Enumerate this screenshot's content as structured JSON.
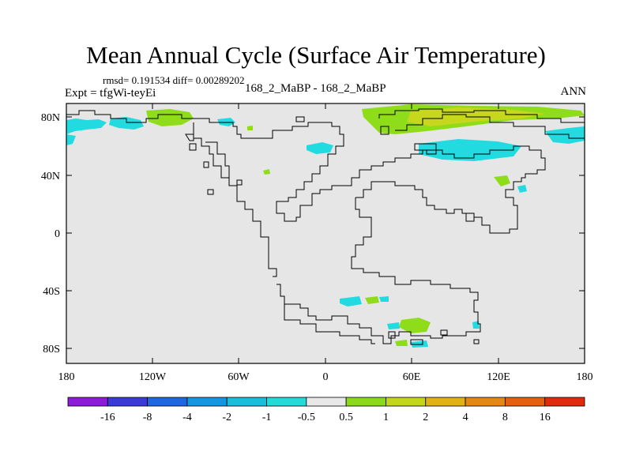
{
  "title": "Mean Annual Cycle (Surface Air Temperature)",
  "stats": "rmsd= 0.191534  diff= 0.00289202",
  "expt": "Expt = tfgWi-teyEi",
  "center_label": "168_2_MaBP - 168_2_MaBP",
  "season": "ANN",
  "colors": {
    "land": "#e6e6e6",
    "coast": "#000000",
    "cyan": "#22dbe0",
    "green": "#8fdc1b",
    "yellowgreen": "#c6d71d"
  },
  "axes": {
    "lat_ticks": [
      "80N",
      "40N",
      "0",
      "40S",
      "80S"
    ],
    "lon_ticks": [
      "180",
      "120W",
      "60W",
      "0",
      "60E",
      "120E",
      "180"
    ]
  },
  "colorbar": {
    "colors": [
      "#8c1cd8",
      "#3b3ad6",
      "#1f67e0",
      "#1496e0",
      "#18bedc",
      "#24dad6",
      "#e8e8e8",
      "#8cd81a",
      "#c4d61a",
      "#e0b214",
      "#e38812",
      "#e46010",
      "#e02a0c"
    ],
    "labels": [
      "-16",
      "-8",
      "-4",
      "-2",
      "-1",
      "-0.5",
      "0.5",
      "1",
      "2",
      "4",
      "8",
      "16"
    ]
  }
}
